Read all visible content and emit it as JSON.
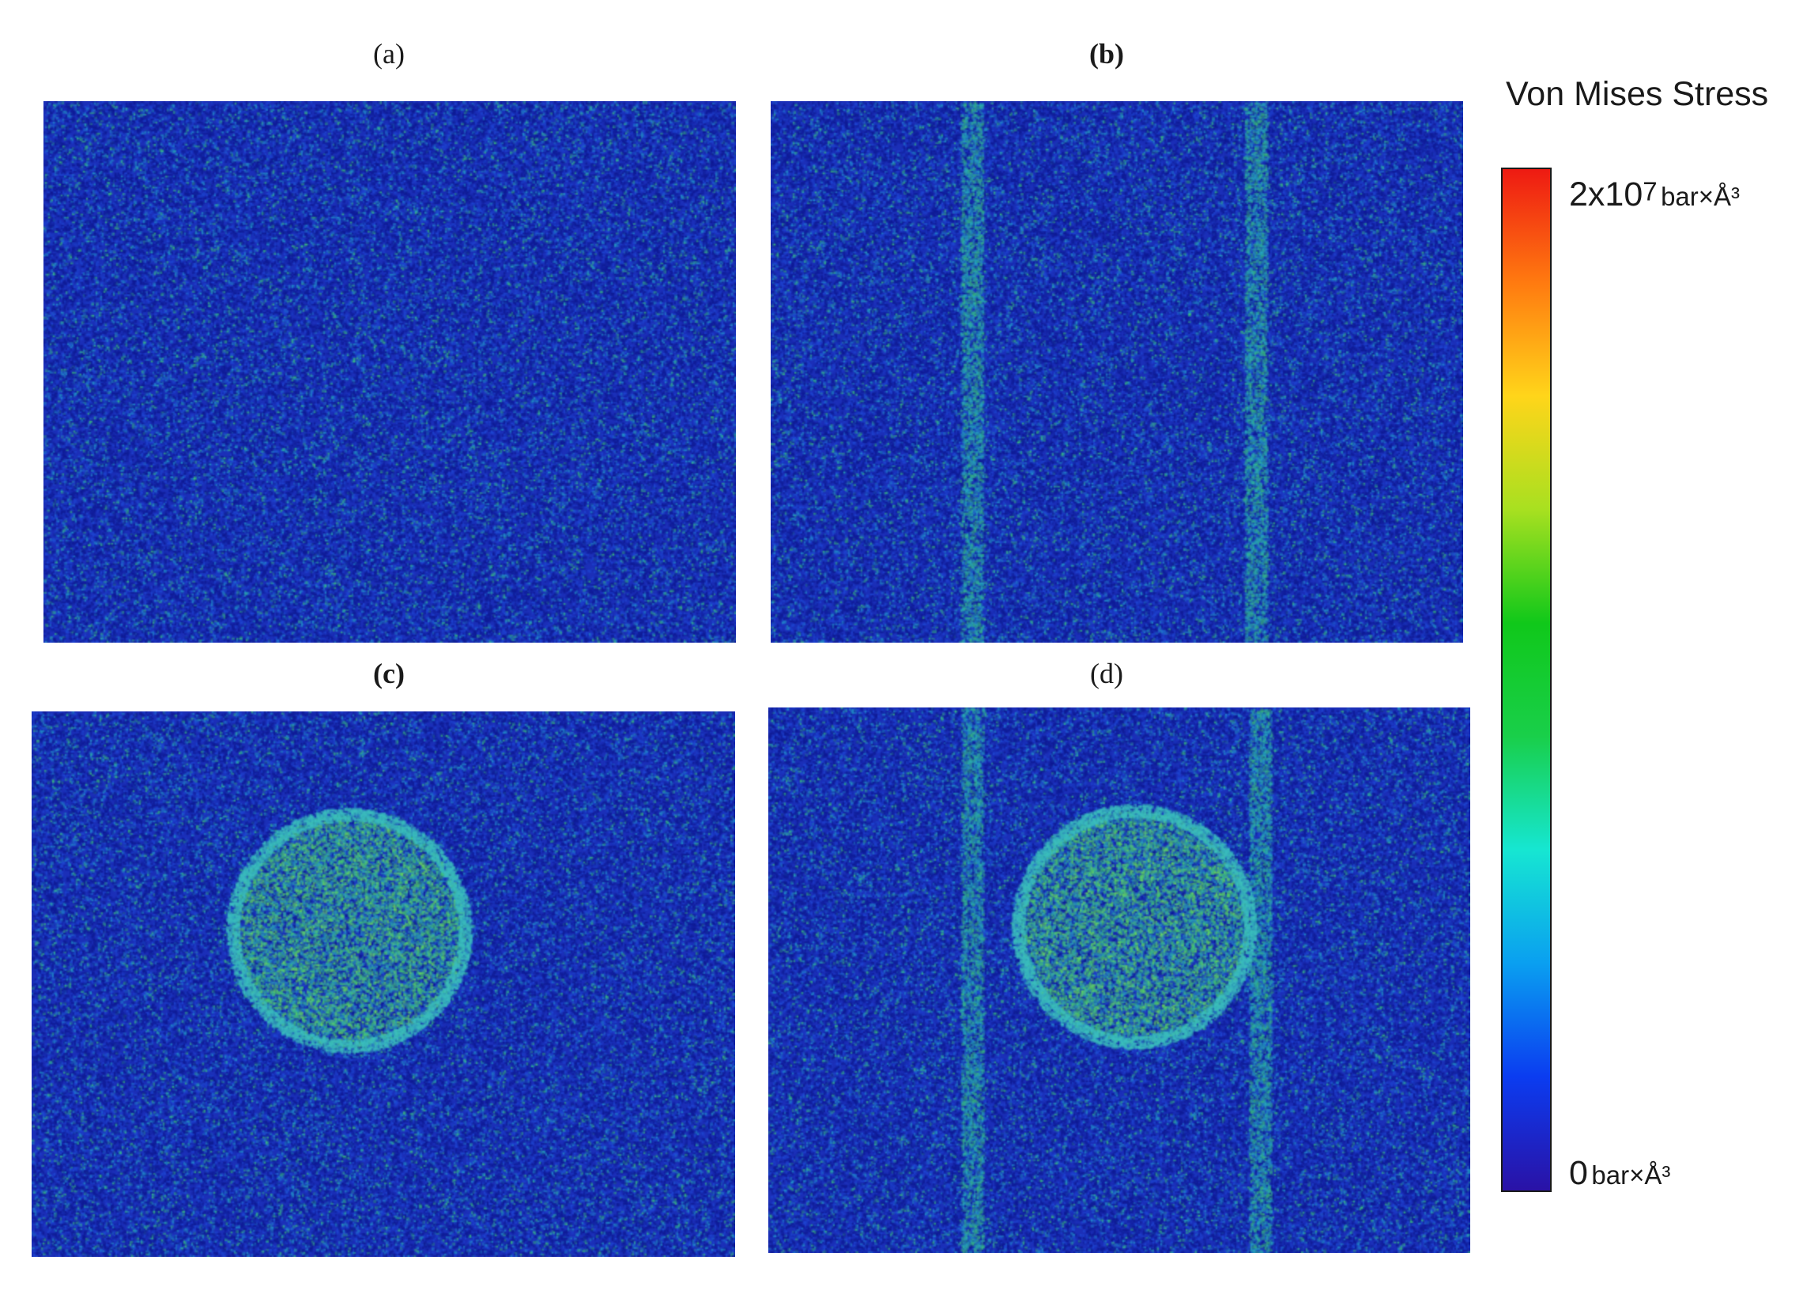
{
  "panels": [
    {
      "label": "(a)",
      "bold": false,
      "circle": false,
      "bands": false
    },
    {
      "label": "(b)",
      "bold": true,
      "circle": false,
      "bands": true
    },
    {
      "label": "(c)",
      "bold": true,
      "circle": true,
      "bands": false
    },
    {
      "label": "(d)",
      "bold": false,
      "circle": true,
      "bands": true
    }
  ],
  "colorbar": {
    "title": "Von Mises Stress",
    "max_value": "2x10",
    "max_exponent": "7",
    "max_unit": "bar×Å³",
    "min_value": "0",
    "min_unit": "bar×Å³",
    "colors": [
      "#2a12a6",
      "#0b3cf0",
      "#0a9ff0",
      "#16e6d2",
      "#19cf4a",
      "#10c81a",
      "#a8e020",
      "#ffd51a",
      "#ff7a10",
      "#ee1a12"
    ]
  },
  "field_colors": {
    "background": "#1b2fb8",
    "speckle_teal": "#2a9ec8",
    "speckle_green": "#39c77a"
  }
}
